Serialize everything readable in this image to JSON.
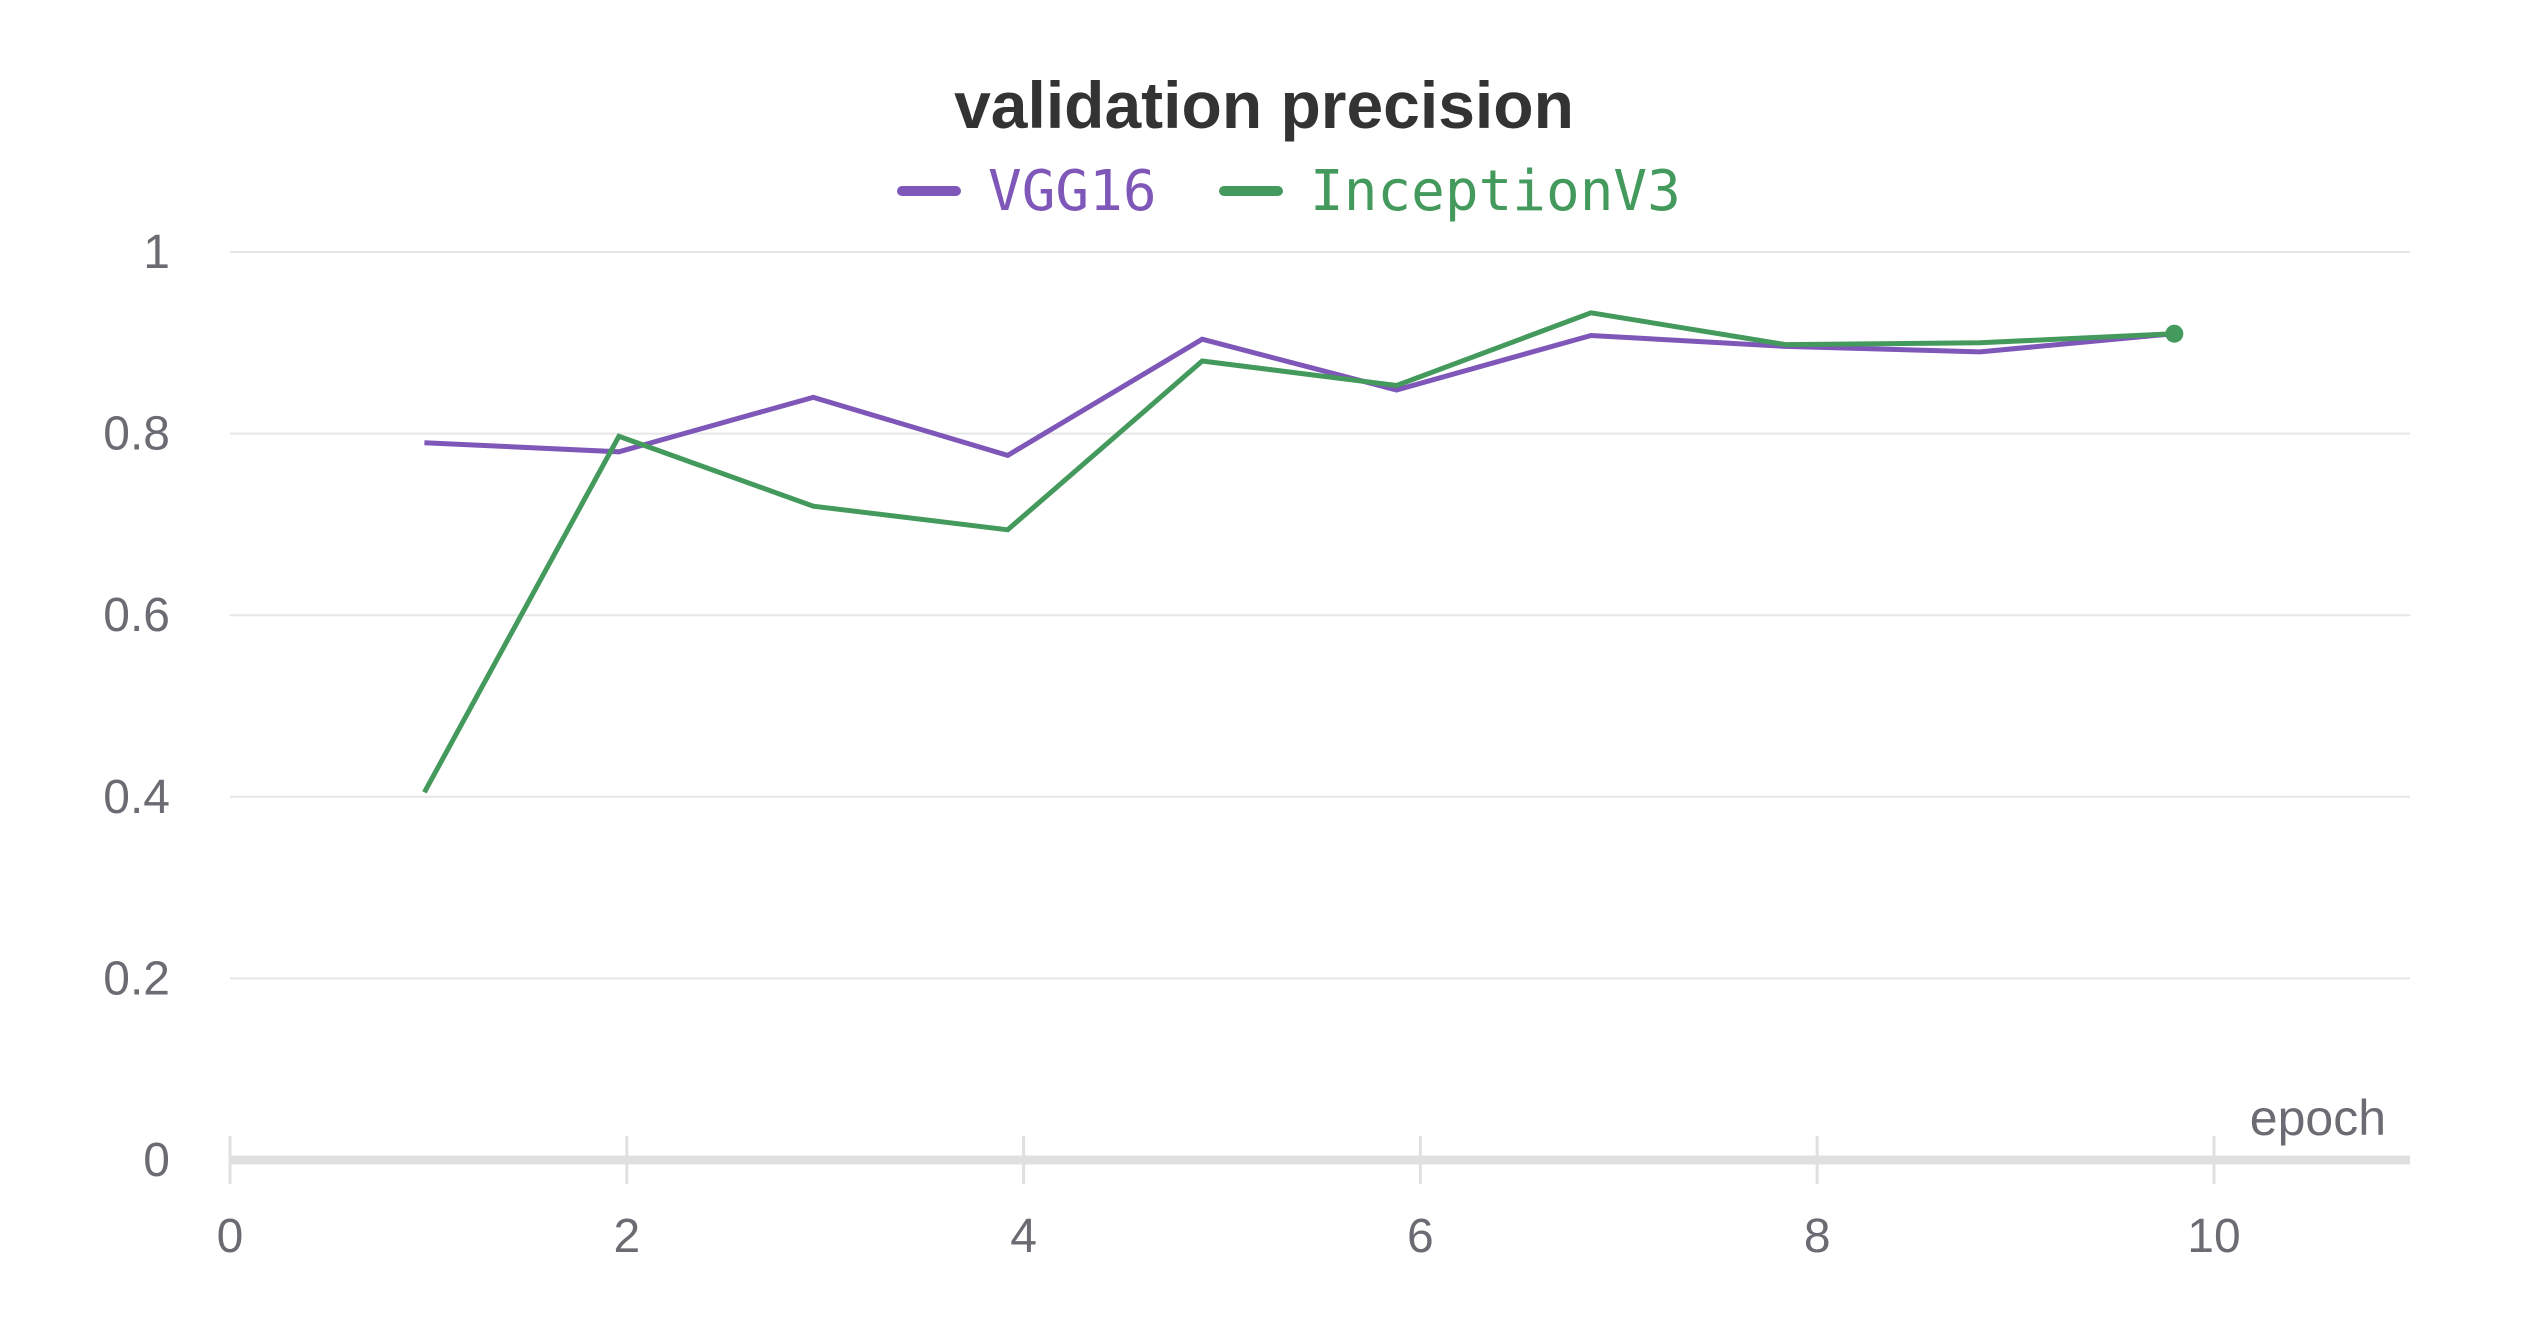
{
  "chart_data": {
    "type": "line",
    "title": "validation precision",
    "xlabel": "epoch",
    "ylabel": "",
    "xlim": [
      0,
      11
    ],
    "ylim": [
      0,
      1
    ],
    "x_ticks": [
      0,
      2,
      4,
      6,
      8,
      10
    ],
    "y_ticks": [
      0,
      0.2,
      0.4,
      0.6,
      0.8,
      1
    ],
    "x_tick_labels": [
      "0",
      "2",
      "4",
      "6",
      "8",
      "10"
    ],
    "y_tick_labels": [
      "0",
      "0.2",
      "0.4",
      "0.6",
      "0.8",
      "1"
    ],
    "grid": true,
    "legend_position": "top-center",
    "series": [
      {
        "name": "VGG16",
        "color": "#7e57b8",
        "x": [
          0.98,
          1.96,
          2.94,
          3.92,
          4.9,
          5.88,
          6.86,
          7.84,
          8.82,
          9.8
        ],
        "y": [
          0.79,
          0.78,
          0.84,
          0.776,
          0.904,
          0.848,
          0.908,
          0.896,
          0.89,
          0.91
        ]
      },
      {
        "name": "InceptionV3",
        "color": "#449a5c",
        "x": [
          0.98,
          1.96,
          2.94,
          3.92,
          4.9,
          5.88,
          6.86,
          7.84,
          8.82,
          9.8
        ],
        "y": [
          0.405,
          0.797,
          0.72,
          0.694,
          0.88,
          0.853,
          0.933,
          0.898,
          0.9,
          0.91
        ]
      }
    ]
  }
}
